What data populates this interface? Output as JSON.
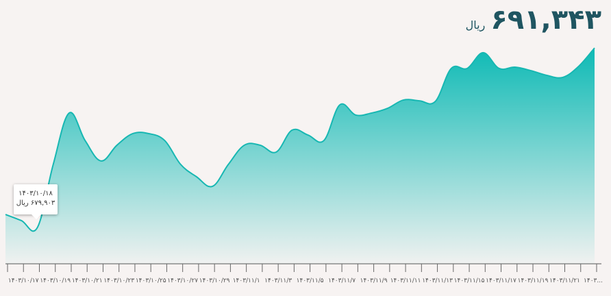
{
  "chart_data": {
    "type": "area",
    "unit": "ریال",
    "categories": [
      null,
      "۱۴۰۳/۱۰/۱۷",
      null,
      "۱۴۰۳/۱۰/۱۹",
      null,
      "۱۴۰۳/۱۰/۲۱",
      null,
      "۱۴۰۳/۱۰/۲۳",
      null,
      "۱۴۰۳/۱۰/۲۵",
      null,
      "۱۴۰۳/۱۰/۲۷",
      null,
      "۱۴۰۳/۱۰/۲۹",
      null,
      "۱۴۰۳/۱۱/۱",
      null,
      "۱۴۰۳/۱۱/۳",
      null,
      "۱۴۰۳/۱۱/۵",
      null,
      "۱۴۰۳/۱۱/۷",
      null,
      "۱۴۰۳/۱۱/۹",
      null,
      "۱۴۰۳/۱۱/۱۱",
      null,
      "۱۴۰۳/۱۱/۱۳",
      null,
      "۱۴۰۳/۱۱/۱۵",
      null,
      "۱۴۰۳/۱۱/۱۷",
      null,
      "۱۴۰۳/۱۱/۱۹",
      null,
      "۱۴۰۳/۱۱/۲۱",
      null,
      "۱۴۰۳..."
    ],
    "values": [
      680740,
      680350,
      679903,
      683930,
      687200,
      685450,
      684150,
      685150,
      685890,
      685890,
      685450,
      683930,
      683140,
      682530,
      683930,
      685150,
      685150,
      684710,
      686110,
      685800,
      685450,
      687720,
      687070,
      687200,
      687500,
      688030,
      687980,
      687940,
      690040,
      690040,
      691040,
      690040,
      690120,
      689900,
      689600,
      689470,
      690170,
      691343
    ],
    "value_labels": [
      null,
      null,
      "۶۷۹,۹۰۳",
      null,
      null,
      null,
      null,
      null,
      null,
      null,
      null,
      null,
      null,
      null,
      null,
      null,
      null,
      null,
      null,
      null,
      null,
      null,
      null,
      null,
      null,
      null,
      null,
      null,
      null,
      null,
      null,
      null,
      null,
      null,
      null,
      null,
      null,
      "۶۹۱,۳۴۳"
    ],
    "tooltip_date": "۱۴۰۳/۱۰/۱۸",
    "color": "#17b7b2",
    "ylim": [
      677600,
      691800
    ]
  }
}
